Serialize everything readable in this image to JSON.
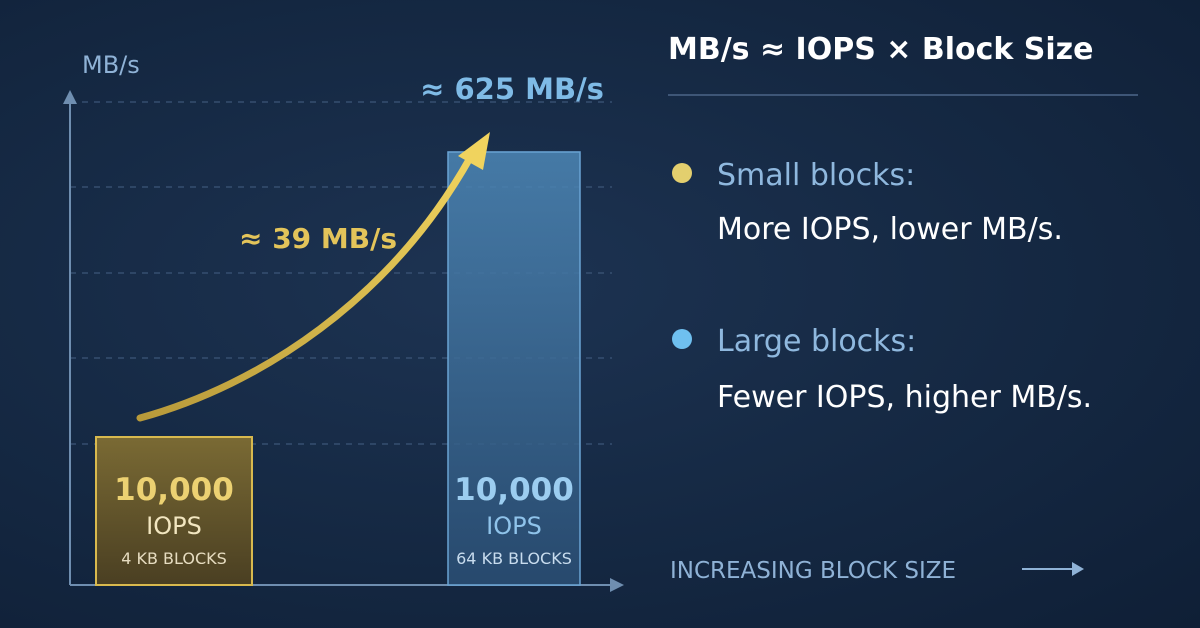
{
  "chart_data": {
    "type": "bar",
    "ylabel": "MB/s",
    "xlabel": "INCREASING BLOCK SIZE",
    "grid": true,
    "ylim": [
      0,
      700
    ],
    "categories": [
      "4 KB BLOCKS",
      "64 KB BLOCKS"
    ],
    "values": [
      39,
      625
    ],
    "bars": [
      {
        "category": "4 KB BLOCKS",
        "iops_value": "10,000",
        "iops_label": "IOPS",
        "mbps": 39,
        "mbps_label": "≈ 39 MB/s",
        "color": "#e3c45a"
      },
      {
        "category": "64 KB BLOCKS",
        "iops_value": "10,000",
        "iops_label": "IOPS",
        "mbps": 625,
        "mbps_label": "≈ 625 MB/s",
        "color": "#7fbbe6"
      }
    ]
  },
  "panel": {
    "formula": "MB/s ≈ IOPS × Block Size",
    "items": [
      {
        "heading": "Small blocks:",
        "text": "More IOPS, lower MB/s.",
        "color": "#e3cf6e"
      },
      {
        "heading": "Large blocks:",
        "text": "Fewer IOPS, higher MB/s.",
        "color": "#6fc0f0"
      }
    ]
  }
}
